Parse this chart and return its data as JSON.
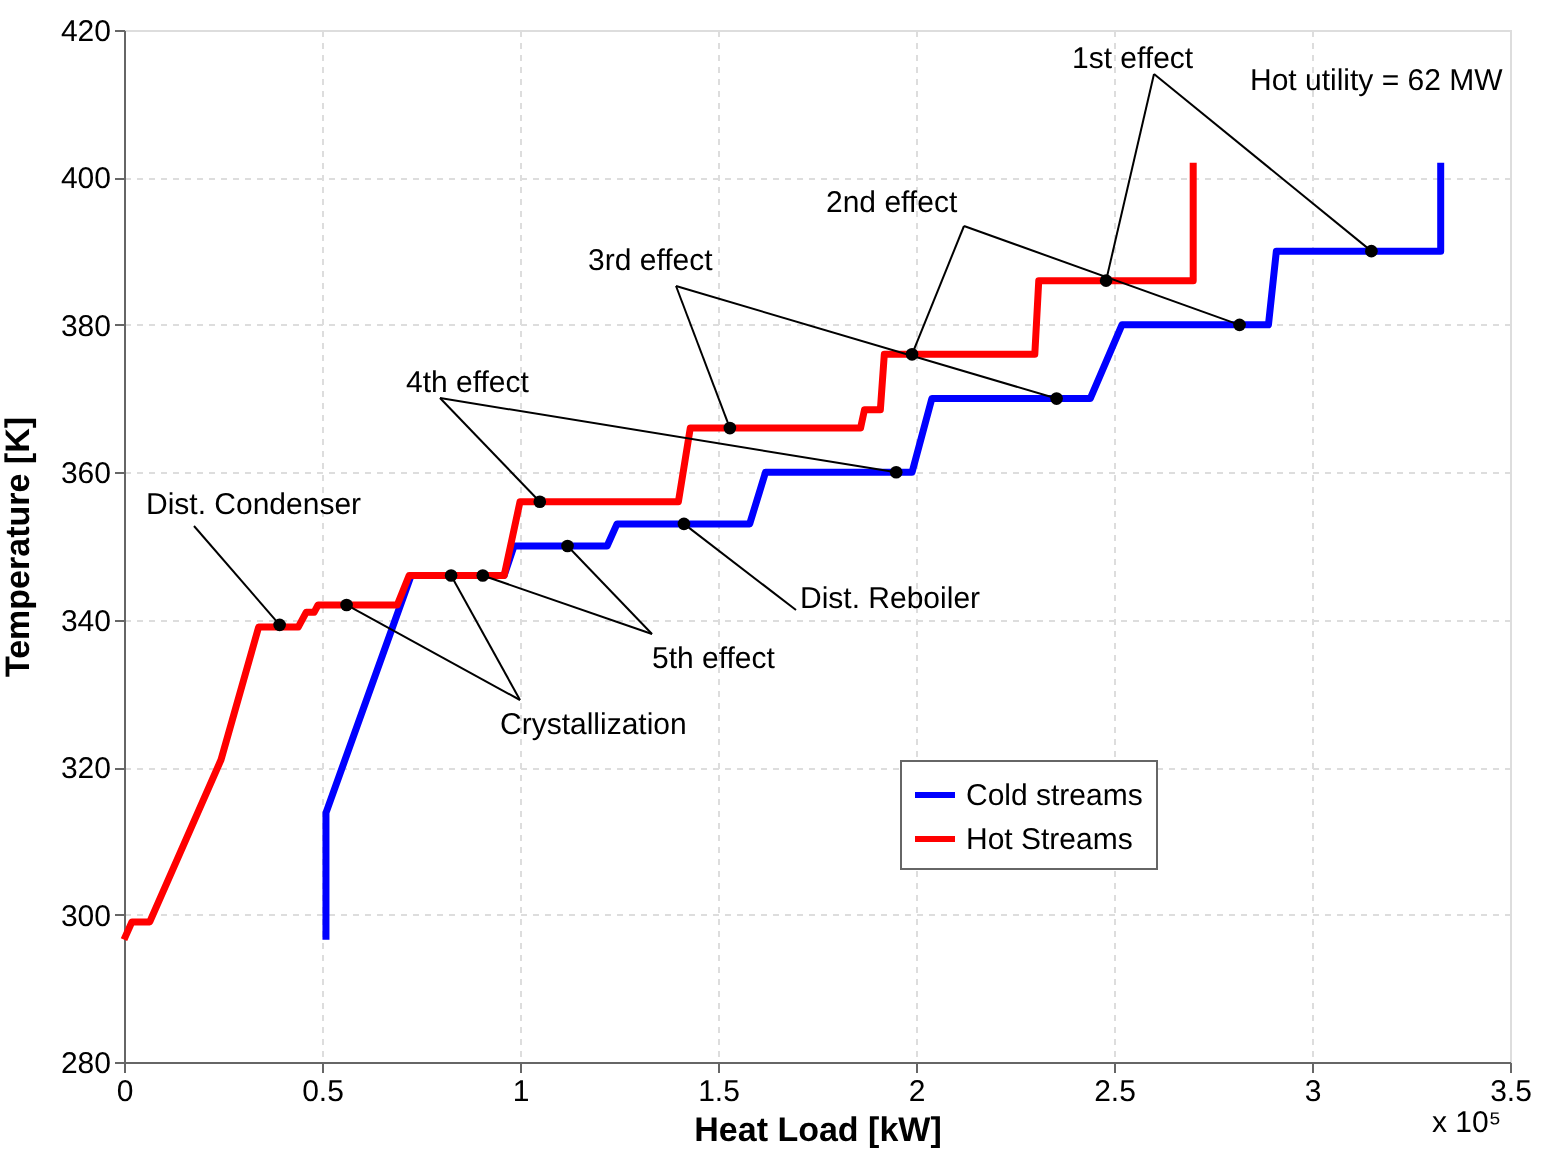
{
  "chart_data": {
    "type": "line",
    "xlabel": "Heat Load [kW]",
    "ylabel": "Temperature [K]",
    "xlim": [
      0,
      3.5
    ],
    "xticks": [
      0,
      0.5,
      1,
      1.5,
      2,
      2.5,
      3,
      3.5
    ],
    "ylim": [
      280,
      420
    ],
    "yticks": [
      280,
      300,
      320,
      340,
      360,
      380,
      400,
      420
    ],
    "grid": true,
    "legend": "bottom right",
    "marker": "none",
    "line_style": "solid",
    "series": [
      {
        "name": "Cold streams",
        "color": "#0000ff",
        "x": [
          0.51,
          0.51,
          0.725,
          0.96,
          0.985,
          1.22,
          1.245,
          1.58,
          1.62,
          1.99,
          2.04,
          2.44,
          2.52,
          2.89,
          2.91,
          3.325,
          3.325
        ],
        "values": [
          296.6,
          313.8,
          346,
          346,
          350,
          350,
          353,
          353,
          360,
          360,
          370,
          370,
          380,
          380,
          390,
          390,
          402
        ]
      },
      {
        "name": "Hot Streams",
        "color": "#ff0000",
        "x": [
          0,
          0.02,
          0.065,
          0.245,
          0.34,
          0.44,
          0.46,
          0.48,
          0.49,
          0.69,
          0.72,
          0.96,
          1.0,
          1.4,
          1.43,
          1.86,
          1.87,
          1.91,
          1.92,
          2.3,
          2.31,
          2.7,
          2.7
        ],
        "values": [
          296.6,
          299,
          299,
          321,
          339,
          339,
          341,
          341,
          342,
          342,
          346,
          346,
          356,
          356,
          366,
          366,
          368.5,
          368.5,
          376,
          376,
          386,
          386,
          402
        ]
      },
      {
        "type": "scatter",
        "marker": "circle",
        "color": "#000000",
        "x": [
          0.393,
          0.562,
          0.826,
          0.906,
          1.12,
          1.414,
          1.05,
          1.95,
          1.53,
          2.355,
          1.99,
          2.817,
          2.48,
          3.15
        ],
        "values": [
          339.3,
          342,
          346,
          346,
          350,
          353,
          356,
          360,
          366,
          370,
          376,
          380,
          386,
          390
        ]
      }
    ],
    "annotations": [
      {
        "text": "Dist. Condenser",
        "x": 0.393,
        "y": 339.3
      },
      {
        "text": "Crystallization",
        "x": 0.562,
        "y": 342
      },
      {
        "text": "5th effect",
        "x": 0.906,
        "y": 346
      },
      {
        "text": "Dist. Reboiler",
        "x": 1.414,
        "y": 353
      },
      {
        "text": "4th effect",
        "x": 1.05,
        "y": 356
      },
      {
        "text": "3rd effect",
        "x": 1.53,
        "y": 366
      },
      {
        "text": "2nd effect",
        "x": 1.99,
        "y": 376
      },
      {
        "text": "1st effect",
        "x": 2.48,
        "y": 386
      },
      "Hot utility = 62 MW",
      "x 10⁵"
    ]
  }
}
